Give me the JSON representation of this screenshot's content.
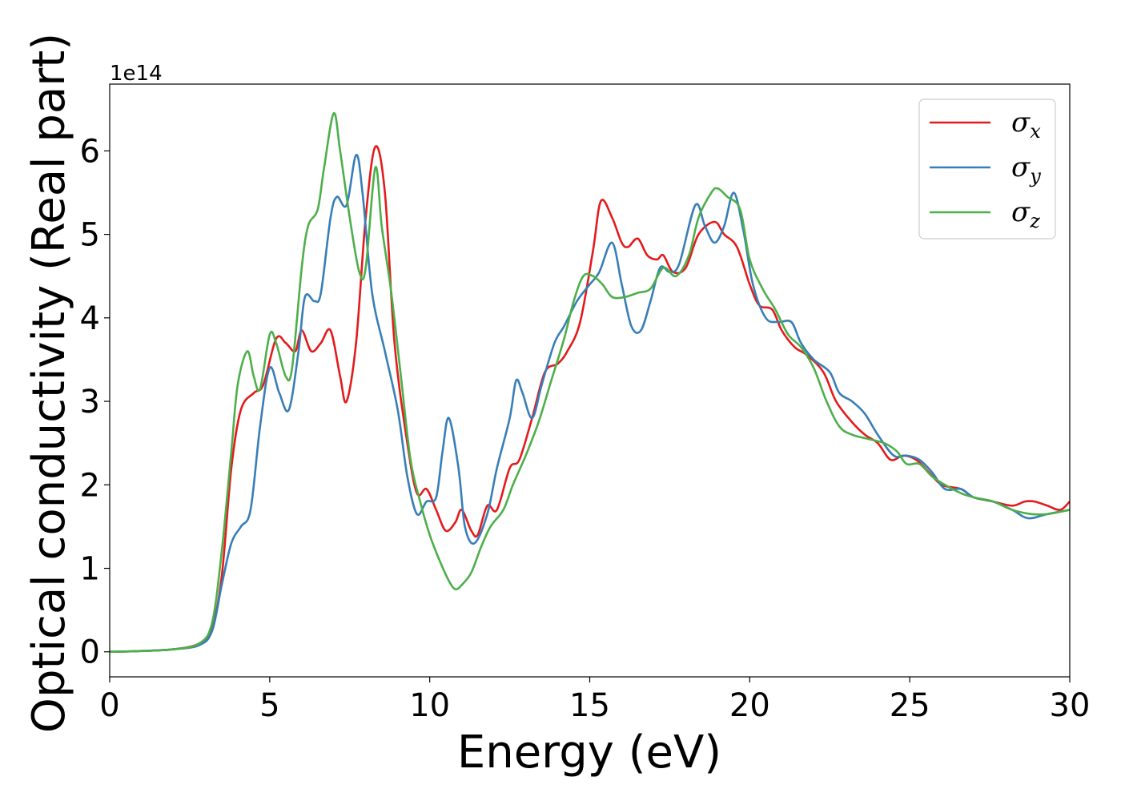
{
  "chart_data": {
    "type": "line",
    "xlabel": "Energy (eV)",
    "ylabel": "Optical conductivity (Real part)",
    "y_offset_label": "1e14",
    "xlim": [
      0,
      30
    ],
    "ylim": [
      -0.3,
      6.8
    ],
    "x_ticks": [
      0,
      5,
      10,
      15,
      20,
      25,
      30
    ],
    "y_ticks": [
      0,
      1,
      2,
      3,
      4,
      5,
      6
    ],
    "grid": false,
    "legend_position": "top-right",
    "x_unit_scale": "eV",
    "y_scale_factor": 100000000000000.0,
    "series": [
      {
        "name": "σx",
        "symbol": "σ",
        "subscript": "x",
        "color": "#e41a1c",
        "points": [
          [
            0,
            0
          ],
          [
            1,
            0.01
          ],
          [
            2,
            0.03
          ],
          [
            2.8,
            0.1
          ],
          [
            3.2,
            0.3
          ],
          [
            3.5,
            0.9
          ],
          [
            3.8,
            2.2
          ],
          [
            4.1,
            2.9
          ],
          [
            4.5,
            3.1
          ],
          [
            4.8,
            3.2
          ],
          [
            5.2,
            3.75
          ],
          [
            5.5,
            3.7
          ],
          [
            5.8,
            3.6
          ],
          [
            6.0,
            3.85
          ],
          [
            6.3,
            3.6
          ],
          [
            6.6,
            3.7
          ],
          [
            6.9,
            3.85
          ],
          [
            7.2,
            3.3
          ],
          [
            7.4,
            3.0
          ],
          [
            7.7,
            3.7
          ],
          [
            8.0,
            5.2
          ],
          [
            8.3,
            6.05
          ],
          [
            8.6,
            5.5
          ],
          [
            8.9,
            3.7
          ],
          [
            9.3,
            2.5
          ],
          [
            9.6,
            1.9
          ],
          [
            9.9,
            1.95
          ],
          [
            10.2,
            1.7
          ],
          [
            10.5,
            1.45
          ],
          [
            10.8,
            1.55
          ],
          [
            11.0,
            1.7
          ],
          [
            11.3,
            1.45
          ],
          [
            11.5,
            1.4
          ],
          [
            11.8,
            1.75
          ],
          [
            12.1,
            1.7
          ],
          [
            12.5,
            2.2
          ],
          [
            12.8,
            2.3
          ],
          [
            13.2,
            2.8
          ],
          [
            13.6,
            3.35
          ],
          [
            14.0,
            3.45
          ],
          [
            14.3,
            3.6
          ],
          [
            14.7,
            3.95
          ],
          [
            15.1,
            4.8
          ],
          [
            15.35,
            5.4
          ],
          [
            15.7,
            5.2
          ],
          [
            16.0,
            4.9
          ],
          [
            16.2,
            4.85
          ],
          [
            16.5,
            4.95
          ],
          [
            16.8,
            4.75
          ],
          [
            17.1,
            4.7
          ],
          [
            17.3,
            4.75
          ],
          [
            17.6,
            4.55
          ],
          [
            18.0,
            4.6
          ],
          [
            18.4,
            5.0
          ],
          [
            18.9,
            5.15
          ],
          [
            19.2,
            5.0
          ],
          [
            19.6,
            4.85
          ],
          [
            20.0,
            4.4
          ],
          [
            20.3,
            4.15
          ],
          [
            20.7,
            4.1
          ],
          [
            21.0,
            3.85
          ],
          [
            21.4,
            3.65
          ],
          [
            21.8,
            3.55
          ],
          [
            22.3,
            3.35
          ],
          [
            22.7,
            3.0
          ],
          [
            23.2,
            2.75
          ],
          [
            23.6,
            2.6
          ],
          [
            24.0,
            2.5
          ],
          [
            24.4,
            2.3
          ],
          [
            24.8,
            2.35
          ],
          [
            25.2,
            2.3
          ],
          [
            25.6,
            2.15
          ],
          [
            26.0,
            2.0
          ],
          [
            26.6,
            1.95
          ],
          [
            27.0,
            1.85
          ],
          [
            27.6,
            1.8
          ],
          [
            28.2,
            1.75
          ],
          [
            28.6,
            1.8
          ],
          [
            28.9,
            1.8
          ],
          [
            29.3,
            1.75
          ],
          [
            29.7,
            1.7
          ],
          [
            30.0,
            1.8
          ]
        ]
      },
      {
        "name": "σy",
        "symbol": "σ",
        "subscript": "y",
        "color": "#377eb8",
        "points": [
          [
            0,
            0
          ],
          [
            1,
            0.01
          ],
          [
            2,
            0.03
          ],
          [
            2.8,
            0.08
          ],
          [
            3.2,
            0.25
          ],
          [
            3.5,
            0.8
          ],
          [
            3.8,
            1.3
          ],
          [
            4.1,
            1.5
          ],
          [
            4.4,
            1.7
          ],
          [
            4.7,
            2.7
          ],
          [
            5.0,
            3.4
          ],
          [
            5.3,
            3.1
          ],
          [
            5.6,
            2.9
          ],
          [
            5.9,
            3.6
          ],
          [
            6.1,
            4.25
          ],
          [
            6.4,
            4.2
          ],
          [
            6.6,
            4.3
          ],
          [
            6.9,
            5.2
          ],
          [
            7.1,
            5.45
          ],
          [
            7.4,
            5.35
          ],
          [
            7.7,
            5.95
          ],
          [
            7.9,
            5.5
          ],
          [
            8.2,
            4.3
          ],
          [
            8.6,
            3.6
          ],
          [
            9.0,
            2.9
          ],
          [
            9.3,
            2.1
          ],
          [
            9.6,
            1.65
          ],
          [
            9.9,
            1.8
          ],
          [
            10.2,
            1.85
          ],
          [
            10.4,
            2.4
          ],
          [
            10.6,
            2.8
          ],
          [
            10.9,
            2.2
          ],
          [
            11.1,
            1.5
          ],
          [
            11.4,
            1.3
          ],
          [
            11.8,
            1.65
          ],
          [
            12.1,
            2.2
          ],
          [
            12.5,
            2.8
          ],
          [
            12.7,
            3.25
          ],
          [
            12.9,
            3.1
          ],
          [
            13.2,
            2.8
          ],
          [
            13.5,
            3.2
          ],
          [
            13.9,
            3.7
          ],
          [
            14.2,
            3.9
          ],
          [
            14.6,
            4.2
          ],
          [
            15.0,
            4.4
          ],
          [
            15.3,
            4.55
          ],
          [
            15.7,
            4.9
          ],
          [
            16.0,
            4.4
          ],
          [
            16.3,
            3.9
          ],
          [
            16.6,
            3.85
          ],
          [
            16.9,
            4.2
          ],
          [
            17.2,
            4.6
          ],
          [
            17.5,
            4.55
          ],
          [
            17.8,
            4.65
          ],
          [
            18.3,
            5.35
          ],
          [
            18.6,
            5.1
          ],
          [
            18.9,
            4.9
          ],
          [
            19.2,
            5.1
          ],
          [
            19.5,
            5.5
          ],
          [
            19.8,
            5.05
          ],
          [
            20.1,
            4.4
          ],
          [
            20.5,
            4.0
          ],
          [
            20.9,
            3.95
          ],
          [
            21.3,
            3.95
          ],
          [
            21.6,
            3.7
          ],
          [
            22.0,
            3.5
          ],
          [
            22.5,
            3.35
          ],
          [
            22.8,
            3.1
          ],
          [
            23.2,
            3.0
          ],
          [
            23.6,
            2.85
          ],
          [
            24.0,
            2.6
          ],
          [
            24.5,
            2.35
          ],
          [
            24.9,
            2.35
          ],
          [
            25.3,
            2.3
          ],
          [
            25.7,
            2.15
          ],
          [
            26.1,
            1.95
          ],
          [
            26.6,
            1.95
          ],
          [
            27.0,
            1.85
          ],
          [
            27.6,
            1.8
          ],
          [
            28.2,
            1.7
          ],
          [
            28.7,
            1.6
          ],
          [
            29.3,
            1.65
          ],
          [
            30.0,
            1.7
          ]
        ]
      },
      {
        "name": "σz",
        "symbol": "σ",
        "subscript": "z",
        "color": "#4daf4a",
        "points": [
          [
            0,
            0
          ],
          [
            1,
            0.01
          ],
          [
            2,
            0.03
          ],
          [
            2.8,
            0.1
          ],
          [
            3.2,
            0.35
          ],
          [
            3.5,
            1.2
          ],
          [
            3.8,
            2.4
          ],
          [
            4.0,
            3.2
          ],
          [
            4.3,
            3.6
          ],
          [
            4.5,
            3.3
          ],
          [
            4.7,
            3.15
          ],
          [
            5.0,
            3.8
          ],
          [
            5.2,
            3.7
          ],
          [
            5.5,
            3.3
          ],
          [
            5.7,
            3.4
          ],
          [
            6.0,
            4.6
          ],
          [
            6.2,
            5.1
          ],
          [
            6.5,
            5.3
          ],
          [
            6.7,
            5.8
          ],
          [
            7.0,
            6.45
          ],
          [
            7.2,
            6.0
          ],
          [
            7.5,
            5.2
          ],
          [
            7.8,
            4.55
          ],
          [
            8.0,
            4.6
          ],
          [
            8.3,
            5.8
          ],
          [
            8.5,
            5.1
          ],
          [
            8.8,
            4.3
          ],
          [
            9.1,
            3.3
          ],
          [
            9.4,
            2.3
          ],
          [
            9.7,
            1.8
          ],
          [
            10.0,
            1.4
          ],
          [
            10.3,
            1.1
          ],
          [
            10.6,
            0.85
          ],
          [
            10.8,
            0.75
          ],
          [
            11.0,
            0.8
          ],
          [
            11.3,
            0.95
          ],
          [
            11.6,
            1.25
          ],
          [
            11.9,
            1.5
          ],
          [
            12.3,
            1.7
          ],
          [
            12.6,
            2.0
          ],
          [
            13.0,
            2.35
          ],
          [
            13.4,
            2.75
          ],
          [
            13.8,
            3.25
          ],
          [
            14.2,
            3.75
          ],
          [
            14.5,
            4.2
          ],
          [
            14.8,
            4.5
          ],
          [
            15.1,
            4.5
          ],
          [
            15.4,
            4.4
          ],
          [
            15.7,
            4.25
          ],
          [
            16.1,
            4.25
          ],
          [
            16.5,
            4.3
          ],
          [
            16.9,
            4.35
          ],
          [
            17.3,
            4.6
          ],
          [
            17.7,
            4.5
          ],
          [
            18.1,
            4.75
          ],
          [
            18.4,
            5.2
          ],
          [
            18.8,
            5.5
          ],
          [
            19.0,
            5.55
          ],
          [
            19.3,
            5.45
          ],
          [
            19.7,
            5.3
          ],
          [
            20.0,
            4.7
          ],
          [
            20.4,
            4.35
          ],
          [
            20.8,
            4.1
          ],
          [
            21.2,
            3.8
          ],
          [
            21.6,
            3.65
          ],
          [
            22.0,
            3.4
          ],
          [
            22.4,
            3.0
          ],
          [
            22.8,
            2.7
          ],
          [
            23.2,
            2.6
          ],
          [
            23.7,
            2.55
          ],
          [
            24.2,
            2.5
          ],
          [
            24.6,
            2.4
          ],
          [
            24.9,
            2.25
          ],
          [
            25.3,
            2.25
          ],
          [
            25.7,
            2.1
          ],
          [
            26.1,
            2.0
          ],
          [
            26.6,
            1.9
          ],
          [
            27.0,
            1.85
          ],
          [
            27.6,
            1.8
          ],
          [
            28.2,
            1.7
          ],
          [
            28.8,
            1.65
          ],
          [
            29.3,
            1.65
          ],
          [
            30.0,
            1.7
          ]
        ]
      }
    ]
  }
}
